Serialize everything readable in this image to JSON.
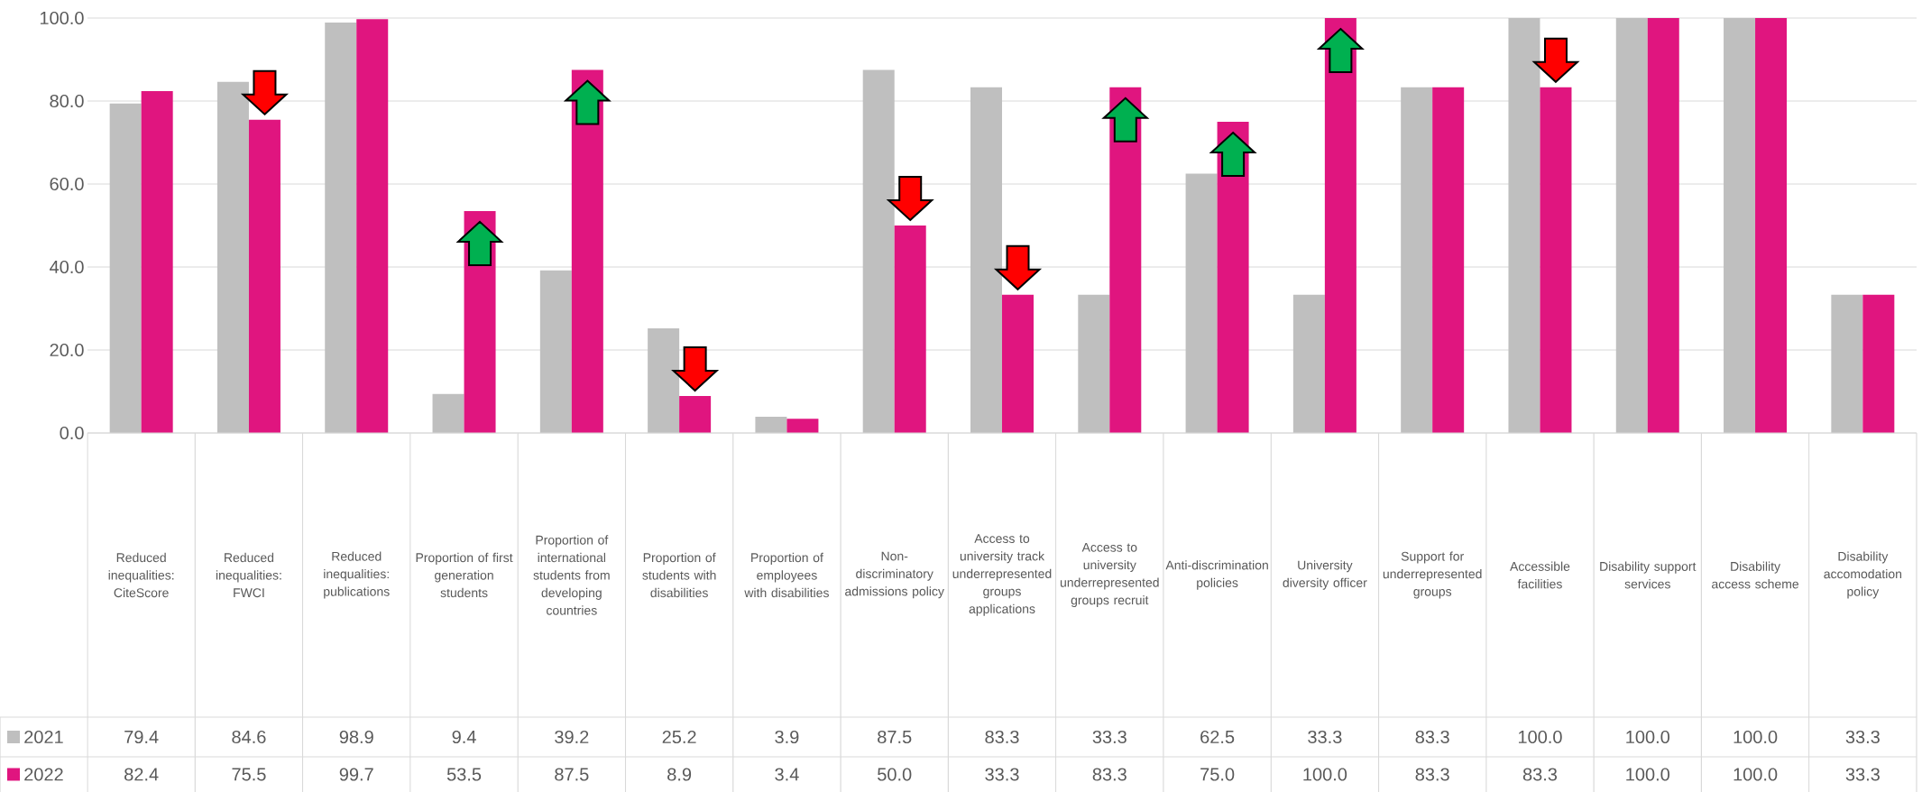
{
  "chart_data": {
    "type": "bar",
    "categories": [
      "Reduced inequalities: CiteScore",
      "Reduced inequalities: FWCI",
      "Reduced inequalities: publications",
      "Proportion of first generation students",
      "Proportion of international students from developing countries",
      "Proportion of students with disabilities",
      "Proportion of employees with disabilities",
      "Non-discriminatory admissions policy",
      "Access to university track underrepresented groups applications",
      "Access to university underrepresented groups recruit",
      "Anti-discrimination policies",
      "University diversity officer",
      "Support for underrepresented groups",
      "Accessible facilities",
      "Disability support services",
      "Disability access scheme",
      "Disability accomodation policy"
    ],
    "series": [
      {
        "name": "2021",
        "color": "#bfbfbf",
        "values": [
          79.4,
          84.6,
          98.9,
          9.4,
          39.2,
          25.2,
          3.9,
          87.5,
          83.3,
          33.3,
          62.5,
          33.3,
          83.3,
          100.0,
          100.0,
          100.0,
          33.3
        ],
        "value_labels": [
          "79.4",
          "84.6",
          "98.9",
          "9.4",
          "39.2",
          "25.2",
          "3.9",
          "87.5",
          "83.3",
          "33.3",
          "62.5",
          "33.3",
          "83.3",
          "100.0",
          "100.0",
          "100.0",
          "33.3"
        ]
      },
      {
        "name": "2022",
        "color": "#e0157f",
        "values": [
          82.4,
          75.5,
          99.7,
          53.5,
          87.5,
          8.9,
          3.4,
          50.0,
          33.3,
          83.3,
          75.0,
          100.0,
          83.3,
          83.3,
          100.0,
          100.0,
          33.3
        ],
        "value_labels": [
          "82.4",
          "75.5",
          "99.7",
          "53.5",
          "87.5",
          "8.9",
          "3.4",
          "50.0",
          "33.3",
          "83.3",
          "75.0",
          "100.0",
          "83.3",
          "83.3",
          "100.0",
          "100.0",
          "33.3"
        ]
      }
    ],
    "ylim": [
      0,
      100
    ],
    "yticks": [
      {
        "value": 0,
        "label": "0.0"
      },
      {
        "value": 20,
        "label": "20.0"
      },
      {
        "value": 40,
        "label": "40.0"
      },
      {
        "value": 60,
        "label": "60.0"
      },
      {
        "value": 80,
        "label": "80.0"
      },
      {
        "value": 100,
        "label": "100.0"
      }
    ],
    "grid": "y",
    "legend": "bottom"
  }
}
